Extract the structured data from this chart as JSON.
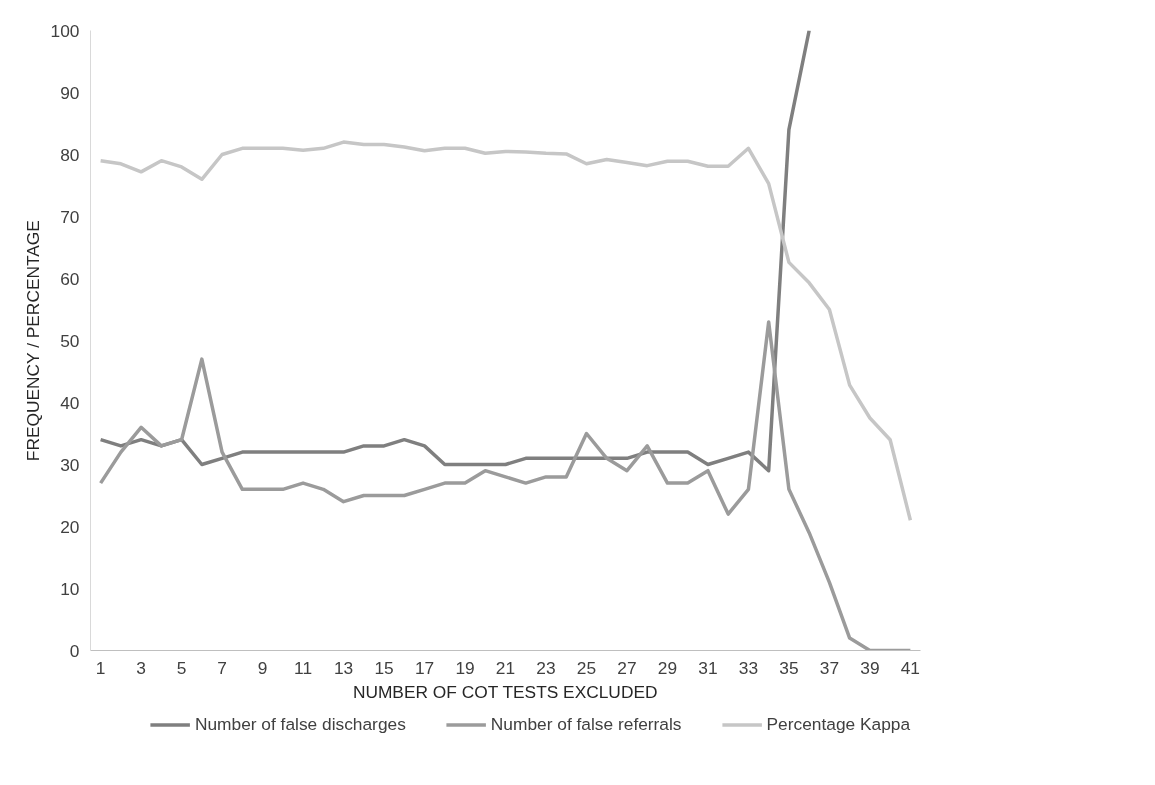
{
  "chart_data": {
    "type": "line",
    "xlabel": "NUMBER OF COT TESTS EXCLUDED",
    "ylabel": "FREQUENCY / PERCENTAGE",
    "x": [
      1,
      2,
      3,
      4,
      5,
      6,
      7,
      8,
      9,
      10,
      11,
      12,
      13,
      14,
      15,
      16,
      17,
      18,
      19,
      20,
      21,
      22,
      23,
      24,
      25,
      26,
      27,
      28,
      29,
      30,
      31,
      32,
      33,
      34,
      35,
      36,
      37,
      38,
      39,
      40,
      41
    ],
    "xlim": [
      0.5,
      41.5
    ],
    "xticks": [
      1,
      3,
      5,
      7,
      9,
      11,
      13,
      15,
      17,
      19,
      21,
      23,
      25,
      27,
      29,
      31,
      33,
      35,
      37,
      39,
      41
    ],
    "ylim": [
      0,
      100
    ],
    "yticks": [
      0,
      10,
      20,
      30,
      40,
      50,
      60,
      70,
      80,
      90,
      100
    ],
    "grid": false,
    "legend": "bottom",
    "marker": "none",
    "line_style": "solid",
    "series": [
      {
        "name": "Number of false discharges",
        "color": "#7f7f7f",
        "values": [
          34,
          33,
          34,
          33,
          34,
          30,
          31,
          32,
          32,
          32,
          32,
          32,
          32,
          33,
          33,
          34,
          33,
          30,
          30,
          30,
          30,
          31,
          31,
          31,
          31,
          31,
          31,
          32,
          32,
          32,
          30,
          31,
          32,
          29,
          84,
          100,
          null,
          null,
          null,
          null,
          null
        ]
      },
      {
        "name": "Number of false referrals",
        "color": "#9b9b9b",
        "values": [
          27,
          32,
          36,
          33,
          34,
          47,
          32,
          26,
          26,
          26,
          27,
          26,
          24,
          25,
          25,
          25,
          26,
          27,
          27,
          29,
          28,
          27,
          28,
          28,
          35,
          31,
          29,
          33,
          27,
          27,
          29,
          22,
          26,
          53,
          26,
          19,
          11,
          2,
          0,
          0,
          0
        ]
      },
      {
        "name": "Percentage Kappa",
        "color": "#c6c6c6",
        "values": [
          79,
          78.5,
          77.2,
          79,
          78,
          76,
          80,
          81,
          81,
          81,
          80.7,
          81,
          82,
          81.6,
          81.6,
          81.2,
          80.6,
          81,
          81,
          80.2,
          80.5,
          80.4,
          80.2,
          80.1,
          78.5,
          79.2,
          78.7,
          78.2,
          78.9,
          78.9,
          78.1,
          78.1,
          81,
          75.3,
          62.6,
          59.3,
          55,
          42.8,
          37.5,
          34,
          21
        ]
      }
    ]
  }
}
